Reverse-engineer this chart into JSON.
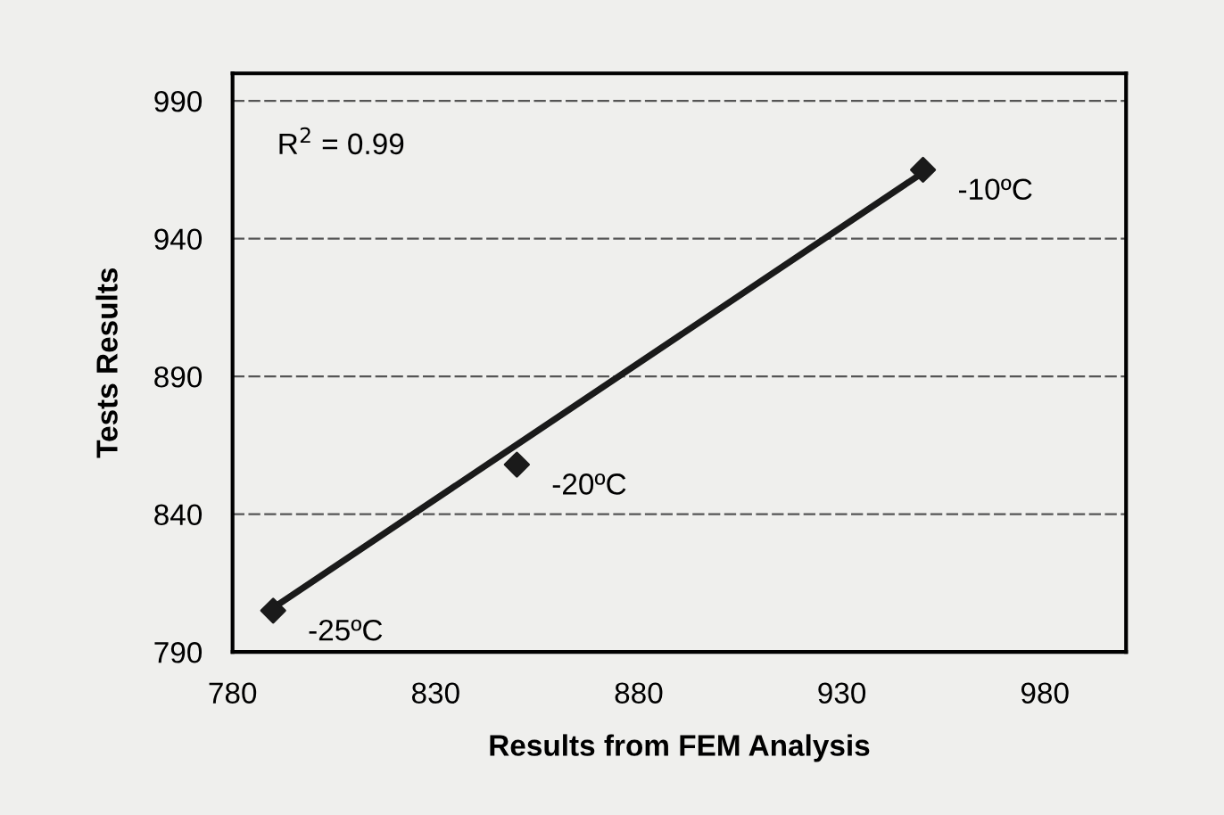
{
  "chart_data": {
    "type": "scatter",
    "xlabel": "Results from FEM Analysis",
    "ylabel": "Tests Results",
    "xlim": [
      780,
      1000
    ],
    "ylim": [
      790,
      1000
    ],
    "xticks": [
      780,
      830,
      880,
      930,
      980
    ],
    "yticks": [
      790,
      840,
      890,
      940,
      990
    ],
    "grid": "y",
    "marker": "diamond",
    "legend": false,
    "series": [
      {
        "color": "#1a1a1a",
        "x": [
          790,
          850,
          950
        ],
        "values": [
          805,
          858,
          965
        ]
      },
      {
        "type": "line",
        "color": "#1a1a1a",
        "x": [
          790,
          950
        ],
        "values": [
          806,
          964
        ],
        "marker": "none",
        "line_style": "solid"
      }
    ],
    "annotations": [
      "R$^{2}$ = 0.99",
      {
        "text": "-25ºC",
        "x": 790,
        "y": 805
      },
      {
        "text": "-20ºC",
        "x": 850,
        "y": 858
      },
      {
        "text": "-10ºC",
        "x": 950,
        "y": 965
      }
    ]
  }
}
